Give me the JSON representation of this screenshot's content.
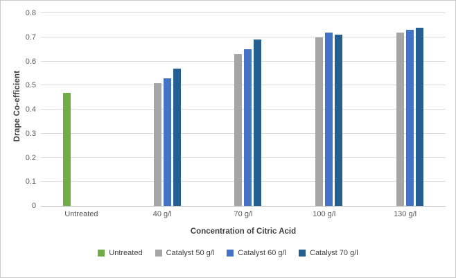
{
  "chart_data": {
    "type": "bar",
    "title": "",
    "ylabel": "Drape Co-efficient",
    "xlabel": "Concentration of Citric Acid",
    "ylim": [
      0,
      0.8
    ],
    "ytick_step": 0.1,
    "grid": true,
    "legend_position": "bottom",
    "categories": [
      "Untreated",
      "40 g/l",
      "70 g/l",
      "100 g/l",
      "130 g/l"
    ],
    "series": [
      {
        "name": "Untreated",
        "color": "#70AD47",
        "values": [
          0.47,
          null,
          null,
          null,
          null
        ]
      },
      {
        "name": "Catalyst 50 g/l",
        "color": "#A5A5A5",
        "values": [
          null,
          0.51,
          0.63,
          0.7,
          0.72
        ]
      },
      {
        "name": "Catalyst 60 g/l",
        "color": "#4472C4",
        "values": [
          null,
          0.53,
          0.65,
          0.72,
          0.73
        ]
      },
      {
        "name": "Catalyst 70 g/l",
        "color": "#255E91",
        "values": [
          null,
          0.57,
          0.69,
          0.71,
          0.74
        ]
      }
    ]
  }
}
